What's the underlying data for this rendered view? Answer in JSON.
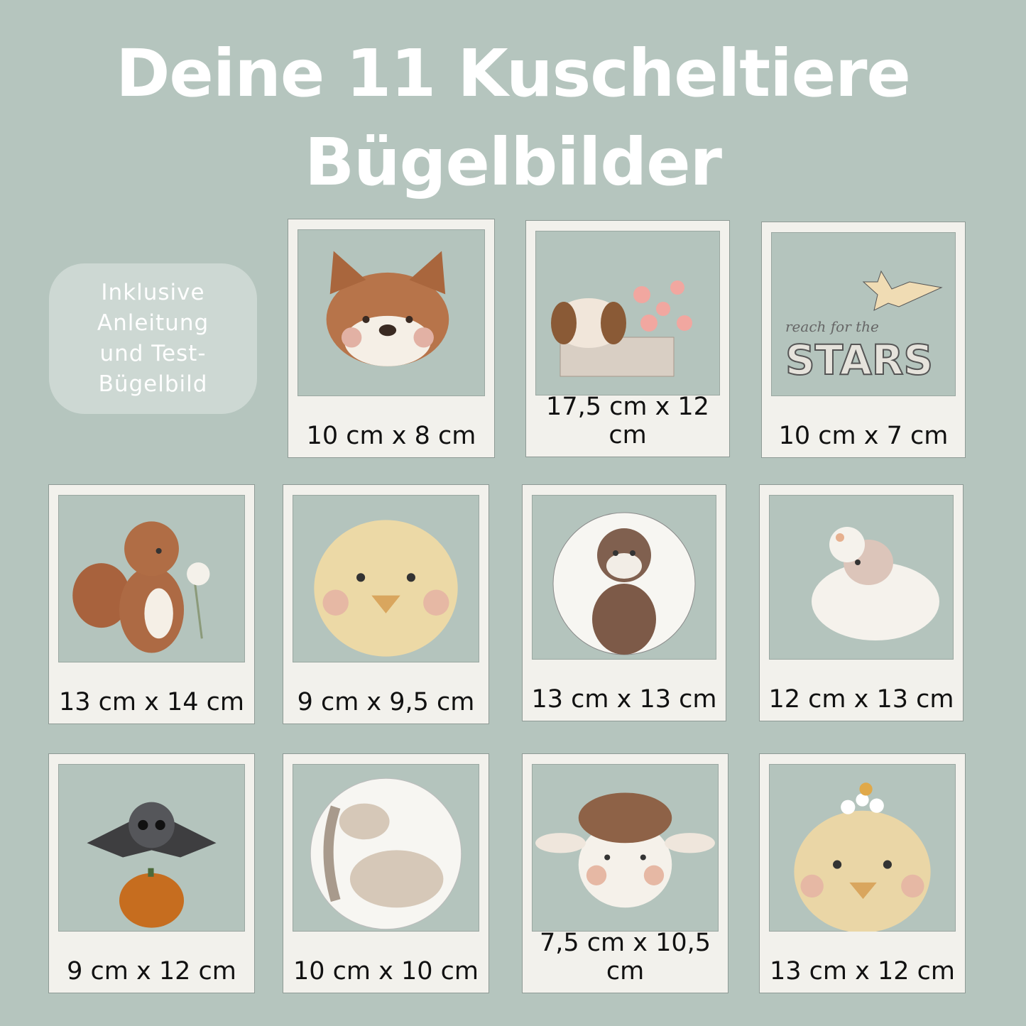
{
  "title": {
    "line1": "Deine 11 Kuscheltiere",
    "line2": "Bügelbilder"
  },
  "badge": {
    "text": "Inklusive Anleitung und Test-Bügelbild"
  },
  "cards": [
    {
      "animal": "cat",
      "size": "10 cm x 8 cm"
    },
    {
      "animal": "puppy-in-flower-box",
      "size": "17,5 cm x 12 cm"
    },
    {
      "animal": "shooting-star",
      "size": "10 cm x 7 cm",
      "lettering_small": "reach for the",
      "lettering_big": "STARS"
    },
    {
      "animal": "squirrel",
      "size": "13 cm x 14 cm"
    },
    {
      "animal": "chick",
      "size": "9 cm x 9,5 cm"
    },
    {
      "animal": "fox",
      "size": "13 cm x 13 cm"
    },
    {
      "animal": "lamb",
      "size": "12 cm x 13 cm"
    },
    {
      "animal": "bat-on-pumpkin",
      "size": "9 cm x 12 cm"
    },
    {
      "animal": "horse",
      "size": "10 cm x 10 cm"
    },
    {
      "animal": "sheep",
      "size": "7,5 cm x 10,5 cm"
    },
    {
      "animal": "chick-with-flowers",
      "size": "13 cm x 12 cm"
    }
  ],
  "colors": {
    "background": "#b5c5be",
    "frame": "#f2f1ec",
    "badge": "#cdd8d3"
  }
}
